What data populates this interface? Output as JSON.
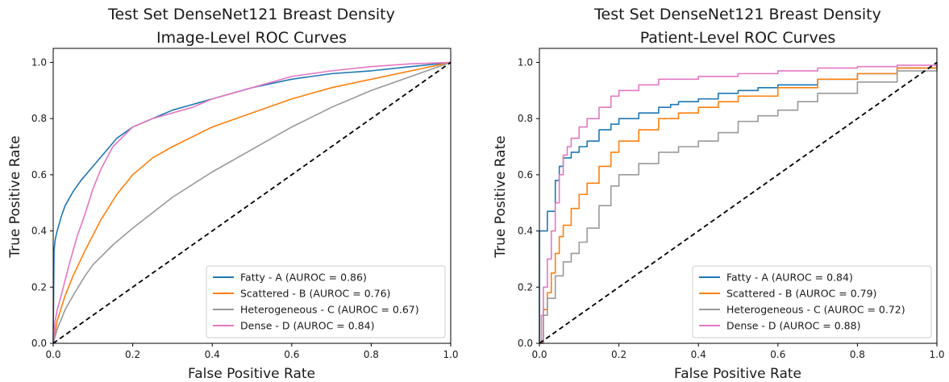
{
  "chart_data": [
    {
      "type": "line",
      "title_line1": "Test Set DenseNet121 Breast Density",
      "title_line2": "Image-Level ROC Curves",
      "xlabel": "False Positive Rate",
      "ylabel": "True Positive Rate",
      "xlim": [
        0,
        1
      ],
      "ylim": [
        0,
        1.05
      ],
      "xticks": [
        0.0,
        0.2,
        0.4,
        0.6,
        0.8,
        1.0
      ],
      "yticks": [
        0.0,
        0.2,
        0.4,
        0.6,
        0.8,
        1.0
      ],
      "tick_labels": [
        "0.0",
        "0.2",
        "0.4",
        "0.6",
        "0.8",
        "1.0"
      ],
      "legend_position": "lower right",
      "grid": false,
      "diagonal": {
        "x": [
          0,
          1
        ],
        "y": [
          0,
          1
        ],
        "style": "dashed",
        "color": "#000000"
      },
      "series": [
        {
          "name": "Fatty - A (AUROC = 0.86)",
          "color": "#1f77b4",
          "step": false,
          "x": [
            0,
            0.002,
            0.005,
            0.01,
            0.02,
            0.03,
            0.05,
            0.07,
            0.1,
            0.13,
            0.16,
            0.2,
            0.25,
            0.3,
            0.35,
            0.4,
            0.5,
            0.6,
            0.7,
            0.8,
            0.9,
            1.0
          ],
          "y": [
            0,
            0.33,
            0.37,
            0.4,
            0.45,
            0.49,
            0.54,
            0.58,
            0.63,
            0.68,
            0.73,
            0.77,
            0.8,
            0.83,
            0.85,
            0.87,
            0.91,
            0.94,
            0.96,
            0.97,
            0.985,
            1.0
          ]
        },
        {
          "name": "Scattered - B (AUROC = 0.76)",
          "color": "#ff7f0e",
          "step": false,
          "x": [
            0,
            0.01,
            0.03,
            0.05,
            0.08,
            0.12,
            0.16,
            0.2,
            0.25,
            0.3,
            0.4,
            0.5,
            0.6,
            0.7,
            0.8,
            0.9,
            1.0
          ],
          "y": [
            0,
            0.08,
            0.17,
            0.24,
            0.33,
            0.44,
            0.53,
            0.6,
            0.66,
            0.7,
            0.77,
            0.82,
            0.87,
            0.91,
            0.94,
            0.97,
            1.0
          ]
        },
        {
          "name": "Heterogeneous - C (AUROC = 0.67)",
          "color": "#999999",
          "step": false,
          "x": [
            0,
            0.01,
            0.03,
            0.05,
            0.08,
            0.1,
            0.15,
            0.2,
            0.3,
            0.4,
            0.5,
            0.6,
            0.7,
            0.8,
            0.9,
            1.0
          ],
          "y": [
            0,
            0.05,
            0.12,
            0.17,
            0.24,
            0.28,
            0.35,
            0.41,
            0.52,
            0.61,
            0.69,
            0.77,
            0.84,
            0.9,
            0.95,
            1.0
          ]
        },
        {
          "name": "Dense - D (AUROC = 0.84)",
          "color": "#e377c2",
          "step": false,
          "x": [
            0,
            0.005,
            0.01,
            0.02,
            0.04,
            0.06,
            0.08,
            0.1,
            0.12,
            0.15,
            0.2,
            0.25,
            0.3,
            0.35,
            0.4,
            0.5,
            0.6,
            0.7,
            0.8,
            0.9,
            1.0
          ],
          "y": [
            0,
            0.08,
            0.12,
            0.17,
            0.28,
            0.38,
            0.46,
            0.55,
            0.62,
            0.7,
            0.77,
            0.8,
            0.82,
            0.84,
            0.87,
            0.91,
            0.95,
            0.97,
            0.985,
            0.995,
            1.0
          ]
        }
      ]
    },
    {
      "type": "line",
      "title_line1": "Test Set DenseNet121 Breast Density",
      "title_line2": "Patient-Level ROC Curves",
      "xlabel": "False Positive Rate",
      "ylabel": "True Positive Rate",
      "xlim": [
        0,
        1
      ],
      "ylim": [
        0,
        1.05
      ],
      "xticks": [
        0.0,
        0.2,
        0.4,
        0.6,
        0.8,
        1.0
      ],
      "yticks": [
        0.0,
        0.2,
        0.4,
        0.6,
        0.8,
        1.0
      ],
      "tick_labels": [
        "0.0",
        "0.2",
        "0.4",
        "0.6",
        "0.8",
        "1.0"
      ],
      "legend_position": "lower right",
      "grid": false,
      "diagonal": {
        "x": [
          0,
          1
        ],
        "y": [
          0,
          1
        ],
        "style": "dashed",
        "color": "#000000"
      },
      "series": [
        {
          "name": "Fatty - A (AUROC = 0.84)",
          "color": "#1f77b4",
          "step": true,
          "x": [
            0,
            0,
            0.02,
            0.04,
            0.05,
            0.06,
            0.08,
            0.1,
            0.12,
            0.15,
            0.18,
            0.2,
            0.25,
            0.3,
            0.33,
            0.35,
            0.4,
            0.45,
            0.5,
            0.55,
            0.6,
            0.7,
            0.8,
            0.9,
            1.0
          ],
          "y": [
            0,
            0.4,
            0.47,
            0.58,
            0.63,
            0.66,
            0.68,
            0.7,
            0.72,
            0.76,
            0.78,
            0.8,
            0.82,
            0.84,
            0.85,
            0.86,
            0.87,
            0.89,
            0.9,
            0.91,
            0.92,
            0.94,
            0.96,
            0.98,
            1.0
          ]
        },
        {
          "name": "Scattered - B (AUROC = 0.79)",
          "color": "#ff7f0e",
          "step": true,
          "x": [
            0,
            0.01,
            0.02,
            0.03,
            0.04,
            0.05,
            0.06,
            0.08,
            0.1,
            0.12,
            0.15,
            0.18,
            0.2,
            0.25,
            0.3,
            0.35,
            0.4,
            0.45,
            0.5,
            0.6,
            0.7,
            0.8,
            0.9,
            1.0
          ],
          "y": [
            0,
            0.12,
            0.18,
            0.25,
            0.32,
            0.38,
            0.42,
            0.48,
            0.53,
            0.57,
            0.63,
            0.68,
            0.72,
            0.76,
            0.8,
            0.82,
            0.84,
            0.86,
            0.88,
            0.91,
            0.94,
            0.96,
            0.98,
            1.0
          ]
        },
        {
          "name": "Heterogeneous - C (AUROC = 0.72)",
          "color": "#999999",
          "step": true,
          "x": [
            0,
            0.01,
            0.02,
            0.04,
            0.06,
            0.08,
            0.1,
            0.12,
            0.15,
            0.18,
            0.2,
            0.25,
            0.3,
            0.35,
            0.4,
            0.45,
            0.5,
            0.55,
            0.6,
            0.65,
            0.7,
            0.8,
            0.9,
            1.0
          ],
          "y": [
            0,
            0.1,
            0.16,
            0.24,
            0.29,
            0.32,
            0.36,
            0.41,
            0.49,
            0.56,
            0.6,
            0.64,
            0.68,
            0.7,
            0.72,
            0.75,
            0.79,
            0.81,
            0.83,
            0.86,
            0.89,
            0.93,
            0.97,
            1.0
          ]
        },
        {
          "name": "Dense - D (AUROC = 0.88)",
          "color": "#e377c2",
          "step": true,
          "x": [
            0,
            0.005,
            0.01,
            0.02,
            0.03,
            0.04,
            0.05,
            0.06,
            0.07,
            0.08,
            0.1,
            0.12,
            0.15,
            0.18,
            0.2,
            0.25,
            0.3,
            0.4,
            0.5,
            0.6,
            0.7,
            0.8,
            0.9,
            1.0
          ],
          "y": [
            0,
            0.1,
            0.2,
            0.3,
            0.4,
            0.5,
            0.6,
            0.67,
            0.7,
            0.73,
            0.77,
            0.8,
            0.84,
            0.88,
            0.9,
            0.92,
            0.94,
            0.95,
            0.96,
            0.97,
            0.98,
            0.985,
            0.99,
            1.0
          ]
        }
      ]
    }
  ]
}
